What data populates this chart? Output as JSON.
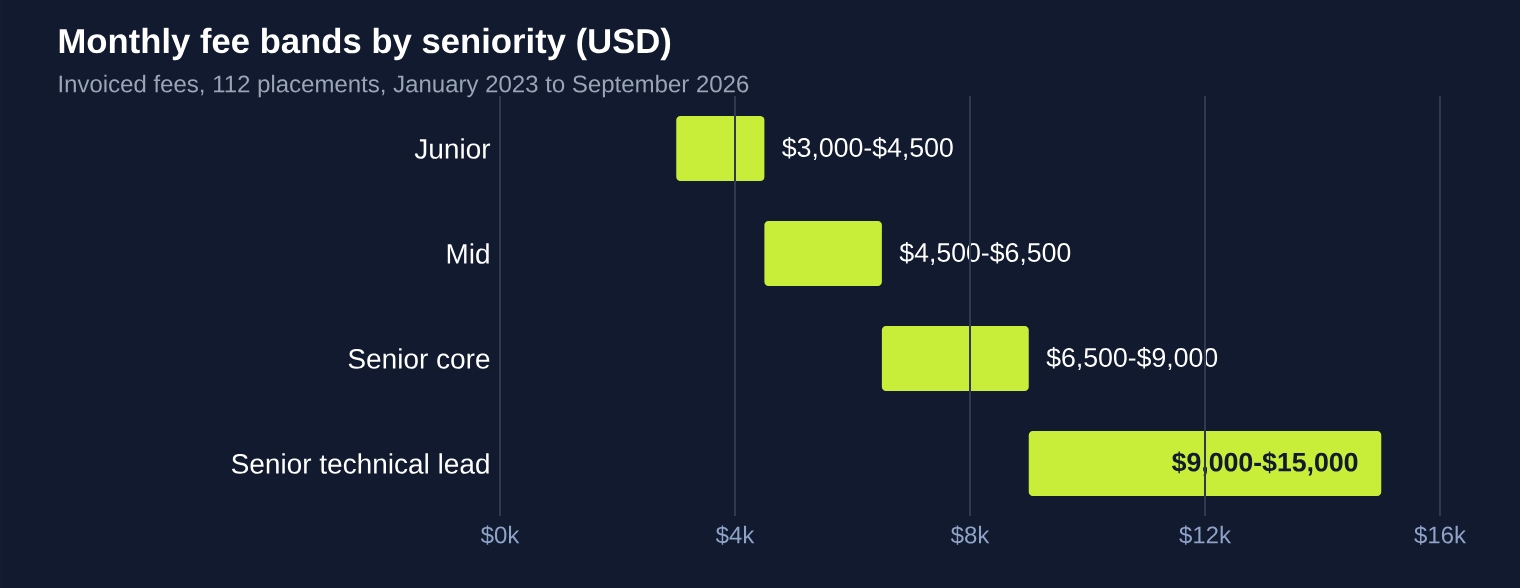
{
  "chart_data": {
    "type": "bar",
    "orientation": "horizontal",
    "title": "Monthly fee bands by seniority (USD)",
    "subtitle": "Invoiced fees, 112 placements, January 2023 to September 2026",
    "categories": [
      "Junior",
      "Mid",
      "Senior core",
      "Senior technical lead"
    ],
    "base": [
      3000,
      4500,
      6500,
      9000
    ],
    "values": [
      1500,
      2000,
      2500,
      6000
    ],
    "value_labels": [
      "$3,000-$4,500",
      "$4,500-$6,500",
      "$6,500-$9,000",
      "$9,000-$15,000"
    ],
    "color": "#c8ee3a",
    "xlim": [
      0,
      16000
    ],
    "xticks": [
      {
        "value": 0,
        "label": "$0k"
      },
      {
        "value": 4000,
        "label": "$4k"
      },
      {
        "value": 8000,
        "label": "$8k"
      },
      {
        "value": 12000,
        "label": "$12k"
      },
      {
        "value": 16000,
        "label": "$16k"
      }
    ],
    "grid": "x"
  }
}
